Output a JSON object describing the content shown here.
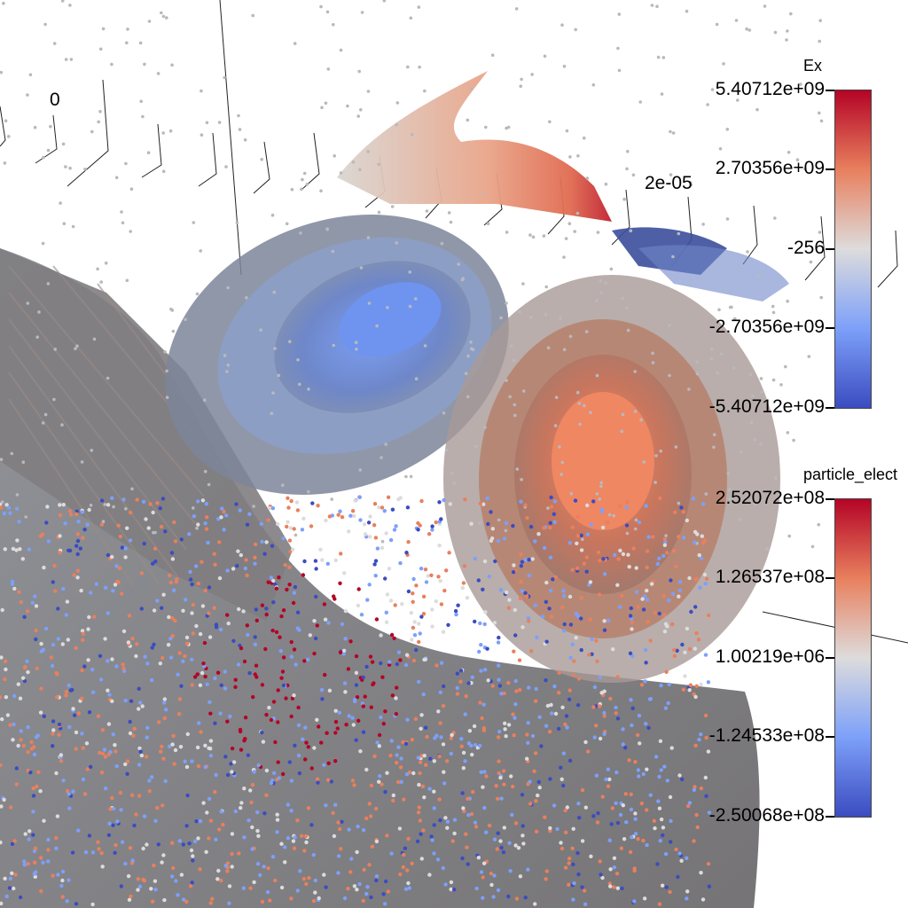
{
  "viewer": {
    "axis_labels": [
      "0",
      "2e-05"
    ]
  },
  "colorbars": [
    {
      "title": "Ex",
      "ticks": [
        "5.40712e+09",
        "2.70356e+09",
        "-256",
        "-2.70356e+09",
        "-5.40712e+09"
      ],
      "colormap": [
        "#b40426",
        "#e8805e",
        "#dddcdc",
        "#7da0f9",
        "#3b4cc0"
      ]
    },
    {
      "title": "particle_elect",
      "ticks": [
        "2.52072e+08",
        "1.26537e+08",
        "1.00219e+06",
        "-1.24533e+08",
        "-2.50068e+08"
      ],
      "colormap": [
        "#b40426",
        "#e8805e",
        "#dddcdc",
        "#7da0f9",
        "#3b4cc0"
      ]
    }
  ]
}
